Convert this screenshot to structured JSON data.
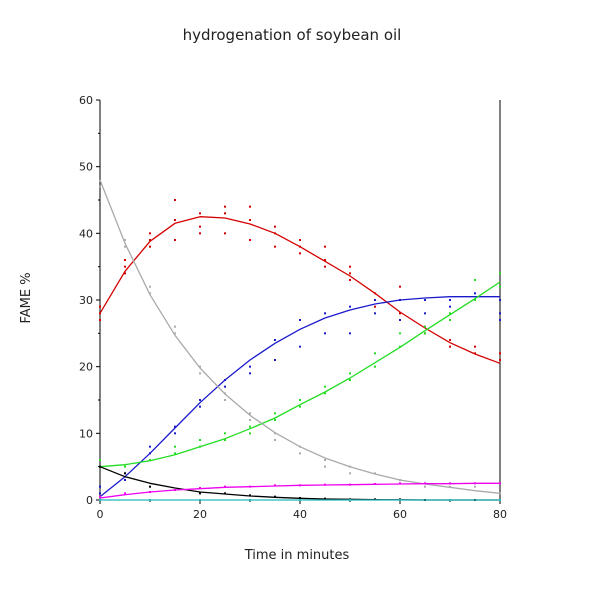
{
  "chart_data": {
    "type": "scatter",
    "title": "hydrogenation of soybean oil",
    "xlabel": "Time in minutes",
    "ylabel": "FAME %",
    "xlim": [
      0,
      80
    ],
    "ylim": [
      0,
      60
    ],
    "xticks": [
      0,
      20,
      40,
      60,
      80
    ],
    "yticks": [
      0,
      10,
      20,
      30,
      40,
      50,
      60
    ],
    "grid": false,
    "legend": "none",
    "series": [
      {
        "color": "#d40000",
        "points": [
          [
            0,
            27
          ],
          [
            0,
            28
          ],
          [
            0,
            29
          ],
          [
            5,
            35
          ],
          [
            5,
            36
          ],
          [
            5,
            34
          ],
          [
            10,
            38
          ],
          [
            10,
            39
          ],
          [
            10,
            40
          ],
          [
            15,
            39
          ],
          [
            15,
            42
          ],
          [
            15,
            45
          ],
          [
            20,
            41
          ],
          [
            20,
            43
          ],
          [
            20,
            40
          ],
          [
            25,
            43
          ],
          [
            25,
            40
          ],
          [
            25,
            44
          ],
          [
            30,
            44
          ],
          [
            30,
            39
          ],
          [
            30,
            42
          ],
          [
            35,
            41
          ],
          [
            35,
            38
          ],
          [
            35,
            40
          ],
          [
            40,
            37
          ],
          [
            40,
            38
          ],
          [
            40,
            39
          ],
          [
            45,
            36
          ],
          [
            45,
            38
          ],
          [
            45,
            35
          ],
          [
            50,
            34
          ],
          [
            50,
            33
          ],
          [
            50,
            35
          ],
          [
            55,
            31
          ],
          [
            55,
            30
          ],
          [
            55,
            29
          ],
          [
            60,
            27
          ],
          [
            60,
            28
          ],
          [
            60,
            32
          ],
          [
            65,
            26
          ],
          [
            65,
            25
          ],
          [
            70,
            23
          ],
          [
            70,
            24
          ],
          [
            75,
            22
          ],
          [
            75,
            23
          ],
          [
            80,
            21
          ],
          [
            80,
            22
          ]
        ],
        "fit": [
          [
            0,
            28
          ],
          [
            5,
            34.3
          ],
          [
            10,
            38.8
          ],
          [
            15,
            41.5
          ],
          [
            20,
            42.5
          ],
          [
            25,
            42.3
          ],
          [
            30,
            41.4
          ],
          [
            35,
            40
          ],
          [
            40,
            38
          ],
          [
            45,
            35.8
          ],
          [
            50,
            33.6
          ],
          [
            55,
            31
          ],
          [
            60,
            28.2
          ],
          [
            65,
            25.8
          ],
          [
            70,
            23.6
          ],
          [
            75,
            21.9
          ],
          [
            80,
            20.5
          ]
        ]
      },
      {
        "color": "#1a1acc",
        "points": [
          [
            0,
            1
          ],
          [
            0,
            2
          ],
          [
            5,
            4
          ],
          [
            5,
            3
          ],
          [
            10,
            7
          ],
          [
            10,
            8
          ],
          [
            15,
            10
          ],
          [
            15,
            11
          ],
          [
            20,
            14
          ],
          [
            20,
            15
          ],
          [
            25,
            18
          ],
          [
            25,
            17
          ],
          [
            30,
            19
          ],
          [
            30,
            20
          ],
          [
            35,
            21
          ],
          [
            35,
            24
          ],
          [
            40,
            23
          ],
          [
            40,
            27
          ],
          [
            45,
            25
          ],
          [
            45,
            28
          ],
          [
            50,
            25
          ],
          [
            50,
            29
          ],
          [
            55,
            28
          ],
          [
            55,
            30
          ],
          [
            60,
            27
          ],
          [
            60,
            30
          ],
          [
            65,
            28
          ],
          [
            65,
            30
          ],
          [
            70,
            29
          ],
          [
            70,
            30
          ],
          [
            75,
            30
          ],
          [
            75,
            31
          ],
          [
            80,
            27
          ],
          [
            80,
            28
          ],
          [
            80,
            30
          ]
        ],
        "fit": [
          [
            0,
            0.5
          ],
          [
            5,
            3.5
          ],
          [
            10,
            7
          ],
          [
            15,
            10.8
          ],
          [
            20,
            14.6
          ],
          [
            25,
            18
          ],
          [
            30,
            21
          ],
          [
            35,
            23.5
          ],
          [
            40,
            25.6
          ],
          [
            45,
            27.3
          ],
          [
            50,
            28.5
          ],
          [
            55,
            29.4
          ],
          [
            60,
            30
          ],
          [
            65,
            30.3
          ],
          [
            70,
            30.5
          ],
          [
            75,
            30.5
          ],
          [
            80,
            30.5
          ]
        ]
      },
      {
        "color": "#22dd22",
        "points": [
          [
            0,
            5
          ],
          [
            0,
            6
          ],
          [
            5,
            5
          ],
          [
            10,
            6
          ],
          [
            15,
            7
          ],
          [
            15,
            8
          ],
          [
            20,
            8
          ],
          [
            20,
            9
          ],
          [
            25,
            9
          ],
          [
            25,
            10
          ],
          [
            30,
            10
          ],
          [
            30,
            11
          ],
          [
            35,
            12
          ],
          [
            35,
            13
          ],
          [
            40,
            14
          ],
          [
            40,
            15
          ],
          [
            45,
            16
          ],
          [
            45,
            17
          ],
          [
            50,
            18
          ],
          [
            50,
            19
          ],
          [
            55,
            20
          ],
          [
            55,
            22
          ],
          [
            60,
            23
          ],
          [
            60,
            25
          ],
          [
            65,
            25
          ],
          [
            65,
            26
          ],
          [
            70,
            27
          ],
          [
            70,
            28
          ],
          [
            75,
            30
          ],
          [
            75,
            33
          ],
          [
            80,
            32
          ],
          [
            80,
            34
          ]
        ],
        "fit": [
          [
            0,
            5
          ],
          [
            5,
            5.3
          ],
          [
            10,
            5.9
          ],
          [
            15,
            6.8
          ],
          [
            20,
            8
          ],
          [
            25,
            9.2
          ],
          [
            30,
            10.7
          ],
          [
            35,
            12.3
          ],
          [
            40,
            14.3
          ],
          [
            45,
            16.2
          ],
          [
            50,
            18.3
          ],
          [
            55,
            20.6
          ],
          [
            60,
            22.9
          ],
          [
            65,
            25.4
          ],
          [
            70,
            27.8
          ],
          [
            75,
            30.2
          ],
          [
            80,
            32.7
          ]
        ]
      },
      {
        "color": "#aaaaaa",
        "points": [
          [
            0,
            47
          ],
          [
            5,
            38
          ],
          [
            5,
            39
          ],
          [
            10,
            31
          ],
          [
            10,
            32
          ],
          [
            15,
            26
          ],
          [
            15,
            25
          ],
          [
            20,
            20
          ],
          [
            20,
            19
          ],
          [
            25,
            16
          ],
          [
            25,
            15
          ],
          [
            30,
            13
          ],
          [
            30,
            12
          ],
          [
            35,
            10
          ],
          [
            35,
            9
          ],
          [
            40,
            8
          ],
          [
            40,
            7
          ],
          [
            45,
            6
          ],
          [
            45,
            5
          ],
          [
            50,
            5
          ],
          [
            50,
            4
          ],
          [
            55,
            4
          ],
          [
            60,
            3
          ],
          [
            65,
            2
          ],
          [
            70,
            2
          ],
          [
            75,
            2
          ],
          [
            80,
            1
          ]
        ],
        "fit": [
          [
            0,
            48
          ],
          [
            5,
            38.5
          ],
          [
            10,
            30.8
          ],
          [
            15,
            24.7
          ],
          [
            20,
            19.8
          ],
          [
            25,
            15.9
          ],
          [
            30,
            12.7
          ],
          [
            35,
            10.1
          ],
          [
            40,
            8
          ],
          [
            45,
            6.3
          ],
          [
            50,
            5
          ],
          [
            55,
            3.9
          ],
          [
            60,
            3
          ],
          [
            65,
            2.4
          ],
          [
            70,
            1.9
          ],
          [
            75,
            1.4
          ],
          [
            80,
            1
          ]
        ]
      },
      {
        "color": "#000000",
        "points": [
          [
            0,
            5
          ],
          [
            5,
            4
          ],
          [
            10,
            2
          ],
          [
            15,
            1.5
          ],
          [
            20,
            1
          ],
          [
            25,
            1
          ],
          [
            30,
            0.7
          ],
          [
            35,
            0.5
          ],
          [
            40,
            0.3
          ],
          [
            45,
            0.2
          ],
          [
            50,
            0.1
          ],
          [
            55,
            0.1
          ],
          [
            60,
            0.1
          ],
          [
            65,
            0
          ],
          [
            70,
            0
          ],
          [
            75,
            0
          ],
          [
            80,
            0
          ]
        ],
        "fit": [
          [
            0,
            5
          ],
          [
            5,
            3.5
          ],
          [
            10,
            2.5
          ],
          [
            15,
            1.8
          ],
          [
            20,
            1.2
          ],
          [
            25,
            0.9
          ],
          [
            30,
            0.6
          ],
          [
            35,
            0.4
          ],
          [
            40,
            0.25
          ],
          [
            45,
            0.15
          ],
          [
            50,
            0.1
          ],
          [
            55,
            0.05
          ],
          [
            60,
            0.03
          ],
          [
            65,
            0
          ],
          [
            70,
            0
          ],
          [
            75,
            0
          ],
          [
            80,
            0
          ]
        ]
      },
      {
        "color": "#ee00ee",
        "points": [
          [
            0,
            0.5
          ],
          [
            5,
            1
          ],
          [
            10,
            1.2
          ],
          [
            15,
            1.5
          ],
          [
            20,
            1.8
          ],
          [
            25,
            2
          ],
          [
            30,
            2
          ],
          [
            35,
            2.2
          ],
          [
            40,
            2.2
          ],
          [
            45,
            2.3
          ],
          [
            50,
            2.3
          ],
          [
            55,
            2.4
          ],
          [
            60,
            2.5
          ],
          [
            65,
            2.5
          ],
          [
            70,
            2.5
          ],
          [
            75,
            2.5
          ],
          [
            80,
            2.5
          ]
        ],
        "fit": [
          [
            0,
            0.3
          ],
          [
            5,
            0.8
          ],
          [
            10,
            1.2
          ],
          [
            15,
            1.5
          ],
          [
            20,
            1.7
          ],
          [
            25,
            1.9
          ],
          [
            30,
            2
          ],
          [
            35,
            2.1
          ],
          [
            40,
            2.2
          ],
          [
            45,
            2.25
          ],
          [
            50,
            2.3
          ],
          [
            55,
            2.35
          ],
          [
            60,
            2.4
          ],
          [
            65,
            2.45
          ],
          [
            70,
            2.45
          ],
          [
            75,
            2.5
          ],
          [
            80,
            2.5
          ]
        ]
      },
      {
        "color": "#22bbbb",
        "points": [
          [
            0,
            0
          ],
          [
            10,
            0
          ],
          [
            20,
            0
          ],
          [
            30,
            0
          ],
          [
            40,
            0
          ],
          [
            50,
            0
          ],
          [
            60,
            0
          ],
          [
            70,
            0
          ],
          [
            80,
            0
          ]
        ],
        "fit": [
          [
            0,
            0
          ],
          [
            80,
            0
          ]
        ]
      }
    ]
  }
}
